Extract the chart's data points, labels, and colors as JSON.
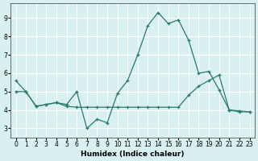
{
  "xlabel": "Humidex (Indice chaleur)",
  "bg_color": "#d8f0f0",
  "grid_color": "#ffffff",
  "line_color": "#2a7a6a",
  "line1_x": [
    0,
    1,
    2,
    3,
    4,
    5,
    6,
    7,
    8,
    9,
    10,
    11,
    12,
    13,
    14,
    15,
    16,
    17,
    18,
    19,
    20,
    21,
    22,
    23
  ],
  "line1_y": [
    5.6,
    5.0,
    4.2,
    4.3,
    4.4,
    4.3,
    5.0,
    3.0,
    3.5,
    3.3,
    4.9,
    5.6,
    7.0,
    8.6,
    9.3,
    8.7,
    8.9,
    7.8,
    6.0,
    6.1,
    5.1,
    4.0,
    3.9,
    3.9
  ],
  "line2_x": [
    0,
    1,
    2,
    3,
    4,
    5,
    6,
    7,
    8,
    9,
    10,
    11,
    12,
    13,
    14,
    15,
    16,
    17,
    18,
    19,
    20,
    21,
    22,
    23
  ],
  "line2_y": [
    5.0,
    5.0,
    4.2,
    4.3,
    4.4,
    4.2,
    4.15,
    4.15,
    4.15,
    4.15,
    4.15,
    4.15,
    4.15,
    4.15,
    4.15,
    4.15,
    4.15,
    4.8,
    5.3,
    5.6,
    5.9,
    4.0,
    3.95,
    3.9
  ],
  "ylim": [
    2.5,
    9.8
  ],
  "xlim": [
    -0.5,
    23.5
  ],
  "yticks": [
    3,
    4,
    5,
    6,
    7,
    8,
    9
  ],
  "xticks": [
    0,
    1,
    2,
    3,
    4,
    5,
    6,
    7,
    8,
    9,
    10,
    11,
    12,
    13,
    14,
    15,
    16,
    17,
    18,
    19,
    20,
    21,
    22,
    23
  ]
}
